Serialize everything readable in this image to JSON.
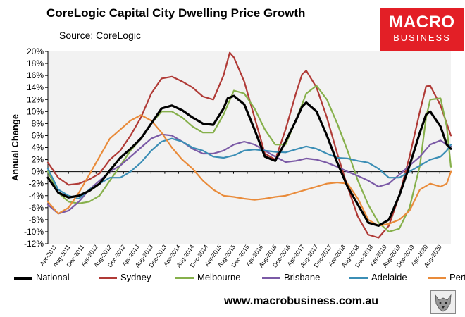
{
  "header": {
    "title": "CoreLogic Capital City Dwelling Price Growth",
    "source": "Source: CoreLogic"
  },
  "logo": {
    "line1": "MACRO",
    "line2": "BUSINESS"
  },
  "footer": {
    "url": "www.macrobusiness.com.au"
  },
  "chart_data": {
    "type": "line",
    "title": "CoreLogic Capital City Dwelling Price Growth",
    "ylabel": "Annual Change",
    "xlabel": "",
    "ylim": [
      -12,
      20
    ],
    "yticks": [
      -12,
      -10,
      -8,
      -6,
      -4,
      -2,
      0,
      2,
      4,
      6,
      8,
      10,
      12,
      14,
      16,
      18,
      20
    ],
    "ytick_labels": [
      "-12%",
      "-10%",
      "-8%",
      "-6%",
      "-4%",
      "-2%",
      "0%",
      "2%",
      "4%",
      "6%",
      "8%",
      "10%",
      "12%",
      "14%",
      "16%",
      "18%",
      "20%"
    ],
    "xlim": [
      2011.25,
      2021.0
    ],
    "xtick_labels": [
      "Apr-2011",
      "Aug-2011",
      "Dec-2011",
      "Apr-2012",
      "Aug-2012",
      "Dec-2012",
      "Apr-2013",
      "Aug-2013",
      "Dec-2013",
      "Apr-2014",
      "Aug-2014",
      "Dec-2014",
      "Apr-2015",
      "Aug-2015",
      "Dec-2015",
      "Apr-2016",
      "Aug-2016",
      "Dec-2016",
      "Apr-2017",
      "Aug-2017",
      "Dec-2017",
      "Apr-2018",
      "Aug-2018",
      "Dec-2018",
      "Apr-2019",
      "Aug-2019",
      "Dec-2019",
      "Apr-2020",
      "Aug-2020"
    ],
    "grid": false,
    "legend_position": "bottom",
    "series": [
      {
        "name": "National",
        "color": "#000000",
        "width": 3.2,
        "x": [
          2011.25,
          2011.5,
          2011.75,
          2012.0,
          2012.25,
          2012.5,
          2012.75,
          2013.0,
          2013.25,
          2013.5,
          2013.75,
          2014.0,
          2014.25,
          2014.5,
          2014.75,
          2015.0,
          2015.25,
          2015.5,
          2015.6,
          2015.75,
          2016.0,
          2016.25,
          2016.5,
          2016.75,
          2017.0,
          2017.25,
          2017.4,
          2017.5,
          2017.75,
          2018.0,
          2018.25,
          2018.5,
          2018.75,
          2019.0,
          2019.25,
          2019.5,
          2019.75,
          2020.0,
          2020.25,
          2020.4,
          2020.5,
          2020.75,
          2020.9,
          2021.0
        ],
        "y": [
          -1,
          -3.5,
          -4.3,
          -4,
          -3.2,
          -2,
          0.2,
          2.3,
          3.8,
          5.5,
          8,
          10.5,
          11,
          10.2,
          9,
          8,
          7.8,
          10.5,
          12.2,
          12.6,
          11.2,
          7,
          2.5,
          1.8,
          5,
          8.5,
          10.8,
          11.5,
          10,
          6,
          1.5,
          -2.5,
          -5.5,
          -8.5,
          -9,
          -8,
          -4,
          1,
          6.5,
          9.5,
          10,
          7.5,
          4.5,
          3.8
        ]
      },
      {
        "name": "Sydney",
        "color": "#b03a36",
        "width": 2.2,
        "x": [
          2011.25,
          2011.5,
          2011.75,
          2012.0,
          2012.25,
          2012.5,
          2012.75,
          2013.0,
          2013.25,
          2013.5,
          2013.75,
          2014.0,
          2014.25,
          2014.5,
          2014.75,
          2015.0,
          2015.25,
          2015.5,
          2015.65,
          2015.75,
          2016.0,
          2016.25,
          2016.5,
          2016.75,
          2017.0,
          2017.25,
          2017.4,
          2017.5,
          2017.75,
          2018.0,
          2018.25,
          2018.5,
          2018.75,
          2019.0,
          2019.25,
          2019.5,
          2019.75,
          2020.0,
          2020.25,
          2020.4,
          2020.5,
          2020.75,
          2020.9,
          2021.0
        ],
        "y": [
          1.5,
          -1,
          -2.2,
          -2,
          -1.3,
          -0.3,
          2,
          3.5,
          6,
          9,
          13,
          15.5,
          15.8,
          15,
          14,
          12.5,
          12,
          16,
          19.8,
          19,
          15,
          9,
          3,
          2,
          7,
          13,
          16.2,
          16.8,
          14,
          9,
          3,
          -2.5,
          -7.5,
          -10.5,
          -11,
          -9,
          -4,
          2.5,
          10,
          14.2,
          14.3,
          11,
          8,
          6
        ]
      },
      {
        "name": "Melbourne",
        "color": "#86b04b",
        "width": 2.2,
        "x": [
          2011.25,
          2011.5,
          2011.75,
          2012.0,
          2012.25,
          2012.5,
          2012.75,
          2013.0,
          2013.25,
          2013.5,
          2013.75,
          2014.0,
          2014.25,
          2014.5,
          2014.75,
          2015.0,
          2015.25,
          2015.5,
          2015.75,
          2016.0,
          2016.25,
          2016.5,
          2016.75,
          2017.0,
          2017.25,
          2017.5,
          2017.75,
          2018.0,
          2018.25,
          2018.5,
          2018.75,
          2019.0,
          2019.25,
          2019.5,
          2019.75,
          2020.0,
          2020.25,
          2020.4,
          2020.5,
          2020.75,
          2020.9,
          2021.0
        ],
        "y": [
          0,
          -3.5,
          -5,
          -5.3,
          -5,
          -4,
          -1.5,
          1,
          3.5,
          5.5,
          8,
          10,
          10,
          9,
          7.5,
          6.5,
          6.5,
          9.5,
          13.5,
          13,
          10.5,
          7,
          4.5,
          4.5,
          8.5,
          13,
          14.3,
          12,
          8,
          3.5,
          -1.5,
          -5.5,
          -8.5,
          -10,
          -9.5,
          -6,
          1,
          9,
          12,
          12.2,
          7.5,
          0.8
        ]
      },
      {
        "name": "Brisbane",
        "color": "#7b5aa6",
        "width": 2.2,
        "x": [
          2011.25,
          2011.5,
          2011.75,
          2012.0,
          2012.25,
          2012.5,
          2012.75,
          2013.0,
          2013.25,
          2013.5,
          2013.75,
          2014.0,
          2014.25,
          2014.5,
          2014.75,
          2015.0,
          2015.25,
          2015.5,
          2015.75,
          2016.0,
          2016.25,
          2016.5,
          2016.75,
          2017.0,
          2017.25,
          2017.5,
          2017.75,
          2018.0,
          2018.25,
          2018.5,
          2018.75,
          2019.0,
          2019.25,
          2019.5,
          2019.75,
          2020.0,
          2020.25,
          2020.5,
          2020.75,
          2020.9,
          2021.0
        ],
        "y": [
          -5.5,
          -7,
          -6.5,
          -5,
          -3,
          -1.5,
          0,
          1,
          2.5,
          4,
          5.5,
          6.2,
          6,
          5,
          3.8,
          3,
          3,
          3.5,
          4.5,
          5,
          4.5,
          3.5,
          2.5,
          1.6,
          1.8,
          2.2,
          2,
          1.5,
          0.8,
          0,
          -0.7,
          -1.5,
          -2.5,
          -2,
          -0.5,
          1,
          2.5,
          4.5,
          5.2,
          4.5,
          4.2
        ]
      },
      {
        "name": "Adelaide",
        "color": "#3b8eb5",
        "width": 2.2,
        "x": [
          2011.25,
          2011.5,
          2011.75,
          2012.0,
          2012.25,
          2012.5,
          2012.75,
          2013.0,
          2013.25,
          2013.5,
          2013.75,
          2014.0,
          2014.25,
          2014.5,
          2014.75,
          2015.0,
          2015.25,
          2015.5,
          2015.75,
          2016.0,
          2016.25,
          2016.5,
          2016.75,
          2017.0,
          2017.25,
          2017.5,
          2017.75,
          2018.0,
          2018.25,
          2018.5,
          2018.75,
          2019.0,
          2019.25,
          2019.5,
          2019.75,
          2020.0,
          2020.25,
          2020.5,
          2020.75,
          2020.9,
          2021.0
        ],
        "y": [
          0.5,
          -3,
          -4,
          -4.5,
          -3,
          -2,
          -1,
          -1,
          0,
          1.5,
          3.5,
          5,
          5.5,
          5,
          4,
          3.5,
          2.5,
          2.3,
          2.7,
          3.5,
          3.7,
          3.5,
          3.3,
          3.2,
          3.7,
          4.2,
          3.8,
          3,
          2.3,
          2.2,
          1.8,
          1.5,
          0.5,
          -1,
          -1,
          0,
          1,
          2,
          2.5,
          3.5,
          4.5
        ]
      },
      {
        "name": "Perth",
        "color": "#e98b3a",
        "width": 2.2,
        "x": [
          2011.25,
          2011.5,
          2011.75,
          2012.0,
          2012.25,
          2012.5,
          2012.75,
          2013.0,
          2013.25,
          2013.5,
          2013.75,
          2014.0,
          2014.25,
          2014.5,
          2014.75,
          2015.0,
          2015.25,
          2015.5,
          2015.75,
          2016.0,
          2016.25,
          2016.5,
          2016.75,
          2017.0,
          2017.25,
          2017.5,
          2017.75,
          2018.0,
          2018.25,
          2018.5,
          2018.75,
          2019.0,
          2019.25,
          2019.5,
          2019.75,
          2020.0,
          2020.25,
          2020.5,
          2020.75,
          2020.9,
          2021.0
        ],
        "y": [
          -5,
          -7,
          -6,
          -3.5,
          -0.5,
          2.5,
          5.5,
          7,
          8.5,
          9.4,
          8.5,
          6.5,
          4,
          2,
          0.5,
          -1.5,
          -3,
          -4,
          -4.2,
          -4.5,
          -4.7,
          -4.5,
          -4.2,
          -4,
          -3.5,
          -3,
          -2.5,
          -2,
          -1.8,
          -2,
          -4.5,
          -8,
          -9,
          -8.7,
          -8,
          -6.5,
          -3,
          -2,
          -2.5,
          -2,
          0
        ]
      }
    ]
  }
}
